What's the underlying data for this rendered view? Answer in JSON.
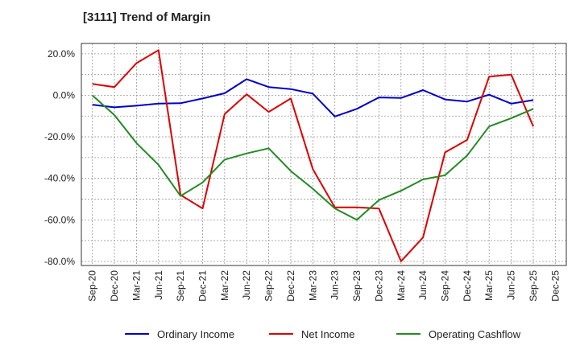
{
  "chart_data": {
    "type": "line",
    "title": "[3111]  Trend of Margin",
    "xlabel": "",
    "ylabel": "",
    "ylim": [
      -82,
      25
    ],
    "yticks": [
      20,
      0,
      -20,
      -40,
      -60,
      -80
    ],
    "ytick_labels": [
      "20.0%",
      "0.0%",
      "-20.0%",
      "-40.0%",
      "-60.0%",
      "-80.0%"
    ],
    "categories": [
      "Sep-20",
      "Dec-20",
      "Mar-21",
      "Jun-21",
      "Sep-21",
      "Dec-21",
      "Mar-22",
      "Jun-22",
      "Sep-22",
      "Dec-22",
      "Mar-23",
      "Jun-23",
      "Sep-23",
      "Dec-23",
      "Mar-24",
      "Jun-24",
      "Sep-24",
      "Dec-24",
      "Mar-25",
      "Jun-25",
      "Sep-25",
      "Dec-25"
    ],
    "series": [
      {
        "name": "Ordinary Income",
        "color": "#0000cc",
        "values": [
          -4.5,
          -5.8,
          -5.0,
          -4.0,
          -3.8,
          -1.5,
          1.0,
          7.8,
          4.0,
          3.0,
          0.8,
          -10.2,
          -6.5,
          -1.0,
          -1.3,
          2.5,
          -2.0,
          -3.0,
          0.3,
          -4.0,
          -2.3,
          null
        ]
      },
      {
        "name": "Net Income",
        "color": "#dd0000",
        "values": [
          5.5,
          4.0,
          15.5,
          21.8,
          -48.0,
          -54.5,
          -9.0,
          0.5,
          -8.0,
          -1.5,
          -35.5,
          -54.0,
          -54.0,
          -54.5,
          -80.0,
          -68.5,
          -27.5,
          -21.5,
          9.0,
          10.0,
          -15.0,
          null
        ]
      },
      {
        "name": "Operating Cashflow",
        "color": "#228b22",
        "values": [
          0.0,
          -9.5,
          -23.0,
          -33.5,
          -48.5,
          -42.0,
          -31.0,
          -28.0,
          -25.5,
          -36.5,
          -45.0,
          -54.5,
          -60.0,
          -50.5,
          -46.0,
          -40.5,
          -38.5,
          -29.0,
          -15.0,
          -11.0,
          -6.5,
          null
        ]
      }
    ],
    "legend_position": "bottom",
    "grid": true
  }
}
